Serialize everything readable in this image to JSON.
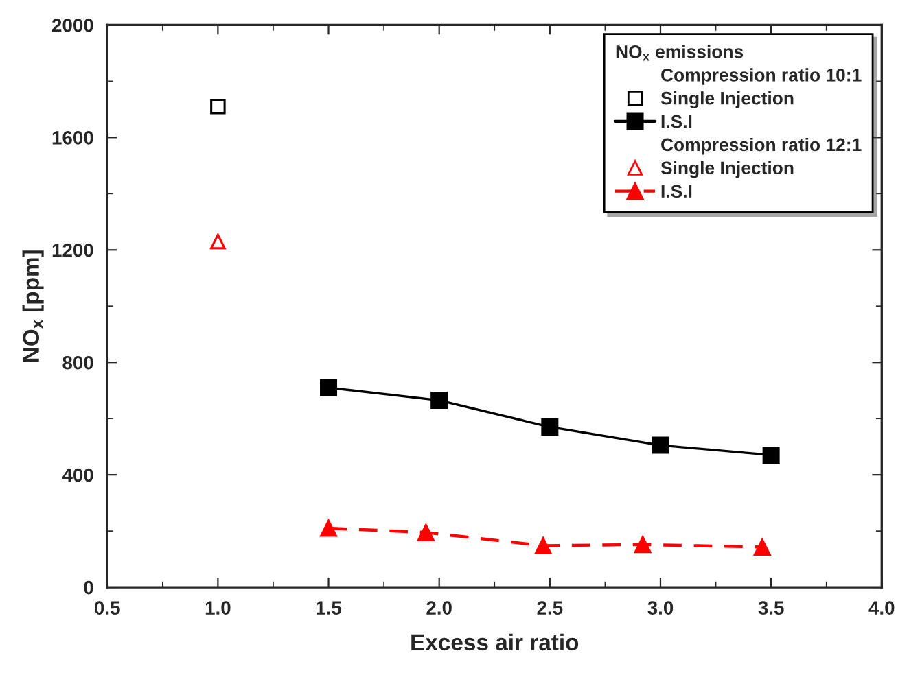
{
  "chart_data": {
    "type": "line",
    "xlabel": "Excess air ratio",
    "ylabel": "NO$_{x}$ [ppm]",
    "legend_title": "NO$_{x}$ emissions",
    "annotations": [
      "Compression ratio 10:1",
      "Compression ratio 12:1"
    ],
    "series": [
      {
        "name": "Single Injection",
        "type": "scatter",
        "marker": "square",
        "color": "#000000",
        "x": [
          1.0
        ],
        "values": [
          1710
        ]
      },
      {
        "name": "I.S.I",
        "marker": "square",
        "line_style": "solid",
        "color": "#000000",
        "x": [
          1.5,
          2.0,
          2.5,
          3.0,
          3.5
        ],
        "values": [
          710,
          665,
          570,
          505,
          470
        ]
      },
      {
        "name": "Single Injection",
        "type": "scatter",
        "marker": "triangle",
        "color": "#ff0000",
        "x": [
          1.0
        ],
        "values": [
          1230
        ]
      },
      {
        "name": "I.S.I",
        "marker": "triangle",
        "line_style": "dashed",
        "color": "#ff0000",
        "x": [
          1.5,
          1.94,
          2.47,
          2.92,
          3.46
        ],
        "values": [
          210,
          195,
          148,
          152,
          143
        ]
      }
    ],
    "xlim": [
      0.5,
      4.0
    ],
    "xticks": [
      {
        "value": 0.5,
        "label": "0.5"
      },
      {
        "value": 1.0,
        "label": "1.0"
      },
      {
        "value": 1.5,
        "label": "1.5"
      },
      {
        "value": 2.0,
        "label": "2.0"
      },
      {
        "value": 2.5,
        "label": "2.5"
      },
      {
        "value": 3.0,
        "label": "3.0"
      },
      {
        "value": 3.5,
        "label": "3.5"
      },
      {
        "value": 4.0,
        "label": "4.0"
      }
    ],
    "ylim": [
      0,
      2000
    ],
    "yticks": [
      0,
      400,
      800,
      1200,
      1600,
      2000
    ],
    "grid": false,
    "legend": "top right"
  }
}
